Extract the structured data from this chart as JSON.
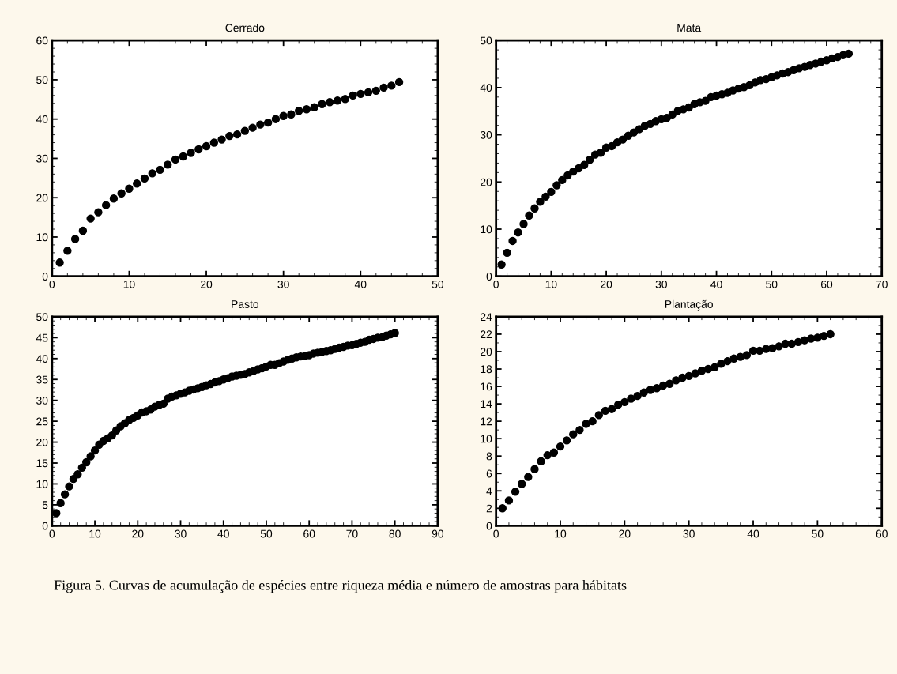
{
  "chart_data": [
    {
      "type": "scatter",
      "title": "Cerrado",
      "marker": "circle",
      "xlim": [
        0,
        50
      ],
      "xticks": [
        0,
        10,
        20,
        30,
        40,
        50
      ],
      "ylim": [
        0,
        60
      ],
      "yticks": [
        0,
        10,
        20,
        30,
        40,
        50,
        60
      ],
      "grid": false,
      "x": [
        1,
        2,
        3,
        4,
        5,
        6,
        7,
        8,
        9,
        10,
        11,
        12,
        13,
        14,
        15,
        16,
        17,
        18,
        19,
        20,
        21,
        22,
        23,
        24,
        25,
        26,
        27,
        28,
        29,
        30,
        31,
        32,
        33,
        34,
        35,
        36,
        37,
        38,
        39,
        40,
        41,
        42,
        43,
        44,
        45
      ],
      "series": [
        {
          "color": "#000000",
          "values": [
            3.5,
            6.5,
            9.5,
            11.6,
            14.7,
            16.3,
            18.1,
            19.8,
            21.1,
            22.3,
            23.6,
            24.9,
            26.2,
            27.1,
            28.4,
            29.7,
            30.5,
            31.4,
            32.3,
            33.1,
            34,
            34.8,
            35.7,
            36.1,
            37,
            37.8,
            38.6,
            39.1,
            40,
            40.8,
            41.2,
            42.1,
            42.5,
            43,
            43.8,
            44.3,
            44.7,
            45.1,
            46,
            46.4,
            46.8,
            47.2,
            48,
            48.5,
            49.4
          ]
        }
      ]
    },
    {
      "type": "scatter",
      "title": "Mata",
      "marker": "circle",
      "xlim": [
        0,
        70
      ],
      "xticks": [
        0,
        10,
        20,
        30,
        40,
        50,
        60,
        70
      ],
      "ylim": [
        0,
        50
      ],
      "yticks": [
        0,
        10,
        20,
        30,
        40,
        50
      ],
      "grid": false,
      "x": [
        1,
        2,
        3,
        4,
        5,
        6,
        7,
        8,
        9,
        10,
        11,
        12,
        13,
        14,
        15,
        16,
        17,
        18,
        19,
        20,
        21,
        22,
        23,
        24,
        25,
        26,
        27,
        28,
        29,
        30,
        31,
        32,
        33,
        34,
        35,
        36,
        37,
        38,
        39,
        40,
        41,
        42,
        43,
        44,
        45,
        46,
        47,
        48,
        49,
        50,
        51,
        52,
        53,
        54,
        55,
        56,
        57,
        58,
        59,
        60,
        61,
        62,
        63,
        64
      ],
      "series": [
        {
          "color": "#000000",
          "values": [
            2.5,
            5,
            7.5,
            9.3,
            11.1,
            12.9,
            14.4,
            15.8,
            16.9,
            17.9,
            19.3,
            20.4,
            21.4,
            22.2,
            22.9,
            23.6,
            24.7,
            25.8,
            26.2,
            27.3,
            27.6,
            28.4,
            29,
            29.8,
            30.5,
            31.2,
            31.9,
            32.3,
            32.9,
            33.3,
            33.6,
            34.3,
            35.1,
            35.4,
            35.8,
            36.5,
            36.9,
            37.2,
            38,
            38.3,
            38.6,
            38.9,
            39.4,
            39.8,
            40.1,
            40.5,
            41.1,
            41.6,
            41.8,
            42.2,
            42.6,
            43,
            43.3,
            43.7,
            44.1,
            44.4,
            44.8,
            45.1,
            45.5,
            45.8,
            46.2,
            46.5,
            46.9,
            47.2
          ]
        }
      ]
    },
    {
      "type": "scatter",
      "title": "Pasto",
      "marker": "circle",
      "xlim": [
        0,
        90
      ],
      "xticks": [
        0,
        10,
        20,
        30,
        40,
        50,
        60,
        70,
        80,
        90
      ],
      "ylim": [
        0,
        50
      ],
      "yticks": [
        0,
        5,
        10,
        15,
        20,
        25,
        30,
        35,
        40,
        45,
        50
      ],
      "grid": false,
      "x": [
        1,
        2,
        3,
        4,
        5,
        6,
        7,
        8,
        9,
        10,
        11,
        12,
        13,
        14,
        15,
        16,
        17,
        18,
        19,
        20,
        21,
        22,
        23,
        24,
        25,
        26,
        27,
        28,
        29,
        30,
        31,
        32,
        33,
        34,
        35,
        36,
        37,
        38,
        39,
        40,
        41,
        42,
        43,
        44,
        45,
        46,
        47,
        48,
        49,
        50,
        51,
        52,
        53,
        54,
        55,
        56,
        57,
        58,
        59,
        60,
        61,
        62,
        63,
        64,
        65,
        66,
        67,
        68,
        69,
        70,
        71,
        72,
        73,
        74,
        75,
        76,
        77,
        78,
        79,
        80
      ],
      "series": [
        {
          "color": "#000000",
          "values": [
            3,
            5.4,
            7.5,
            9.4,
            11.2,
            12.3,
            13.9,
            15.2,
            16.6,
            18,
            19.4,
            20.3,
            20.9,
            21.6,
            22.8,
            23.8,
            24.5,
            25.3,
            25.8,
            26.4,
            27.1,
            27.4,
            27.8,
            28.5,
            28.9,
            29.2,
            30.4,
            30.9,
            31.2,
            31.6,
            31.9,
            32.3,
            32.6,
            32.9,
            33.2,
            33.6,
            33.9,
            34.3,
            34.6,
            35,
            35.3,
            35.7,
            35.9,
            36.1,
            36.3,
            36.7,
            37,
            37.4,
            37.7,
            38.1,
            38.5,
            38.5,
            38.9,
            39.3,
            39.7,
            40,
            40.3,
            40.5,
            40.6,
            40.8,
            41.2,
            41.4,
            41.6,
            41.8,
            42,
            42.3,
            42.6,
            42.8,
            43.1,
            43.2,
            43.5,
            43.8,
            44,
            44.5,
            44.7,
            45,
            45.1,
            45.5,
            45.8,
            46.1
          ]
        }
      ]
    },
    {
      "type": "scatter",
      "title": "Plantação",
      "marker": "circle",
      "xlim": [
        0,
        60
      ],
      "xticks": [
        0,
        10,
        20,
        30,
        40,
        50,
        60
      ],
      "ylim": [
        0,
        24
      ],
      "yticks": [
        0,
        2,
        4,
        6,
        8,
        10,
        12,
        14,
        16,
        18,
        20,
        22,
        24
      ],
      "grid": false,
      "x": [
        1,
        2,
        3,
        4,
        5,
        6,
        7,
        8,
        9,
        10,
        11,
        12,
        13,
        14,
        15,
        16,
        17,
        18,
        19,
        20,
        21,
        22,
        23,
        24,
        25,
        26,
        27,
        28,
        29,
        30,
        31,
        32,
        33,
        34,
        35,
        36,
        37,
        38,
        39,
        40,
        41,
        42,
        43,
        44,
        45,
        46,
        47,
        48,
        49,
        50,
        51,
        52
      ],
      "series": [
        {
          "color": "#000000",
          "values": [
            2,
            2.9,
            3.9,
            4.8,
            5.6,
            6.5,
            7.4,
            8.1,
            8.4,
            9.1,
            9.8,
            10.5,
            11,
            11.7,
            12,
            12.7,
            13.2,
            13.4,
            13.9,
            14.2,
            14.6,
            14.9,
            15.3,
            15.6,
            15.8,
            16.1,
            16.3,
            16.7,
            17,
            17.2,
            17.5,
            17.8,
            18,
            18.2,
            18.6,
            18.9,
            19.2,
            19.4,
            19.6,
            20.1,
            20.1,
            20.3,
            20.4,
            20.6,
            20.9,
            20.9,
            21.1,
            21.3,
            21.5,
            21.6,
            21.8,
            22
          ]
        }
      ],
      "annotations": [
        "Figura 5. Curvas de acumulação de espécies entre riqueza média e número de amostras para hábitats"
      ]
    }
  ]
}
